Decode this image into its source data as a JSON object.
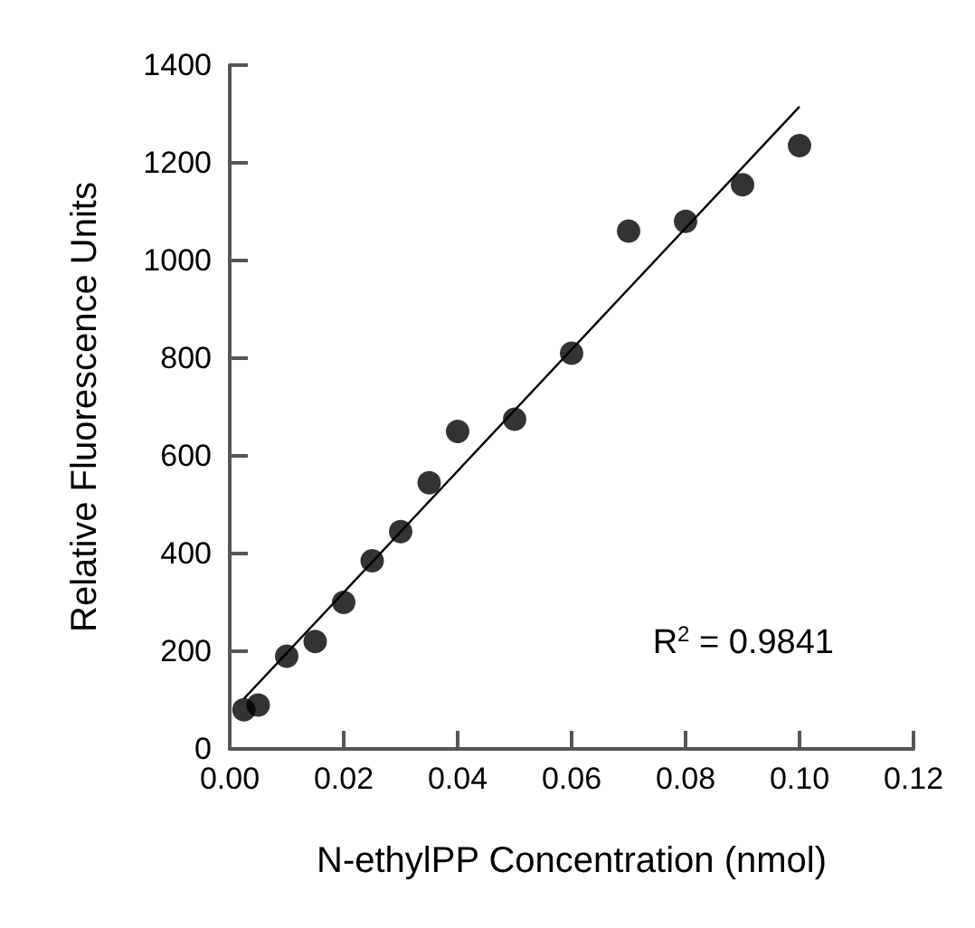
{
  "chart_data": {
    "type": "scatter",
    "xlabel": "N-ethylPP Concentration (nmol)",
    "ylabel": "Relative Fluorescence Units",
    "x": [
      0.0025,
      0.005,
      0.01,
      0.015,
      0.02,
      0.025,
      0.03,
      0.035,
      0.04,
      0.05,
      0.06,
      0.07,
      0.08,
      0.09,
      0.1
    ],
    "series": [
      {
        "color": "#000000",
        "marker": "circle",
        "values": [
          80,
          90,
          190,
          220,
          300,
          385,
          445,
          545,
          650,
          675,
          810,
          1060,
          1080,
          1155,
          1235
        ]
      },
      {
        "type": "line",
        "color": "#000000",
        "marker": "none",
        "x": [
          0.0025,
          0.1
        ],
        "values": [
          103,
          1315
        ]
      }
    ],
    "xlim": [
      0,
      0.12
    ],
    "xticks": [
      {
        "value": 0,
        "label": "0.00"
      },
      {
        "value": 0.02,
        "label": "0.02"
      },
      {
        "value": 0.04,
        "label": "0.04"
      },
      {
        "value": 0.06,
        "label": "0.06"
      },
      {
        "value": 0.08,
        "label": "0.08"
      },
      {
        "value": 0.1,
        "label": "0.10"
      },
      {
        "value": 0.12,
        "label": "0.12"
      }
    ],
    "ylim": [
      0,
      1400
    ],
    "yticks": [
      0,
      200,
      400,
      600,
      800,
      1000,
      1200,
      1400
    ],
    "annotations": [
      "R$^{2}$ = 0.9841"
    ],
    "grid": false
  }
}
